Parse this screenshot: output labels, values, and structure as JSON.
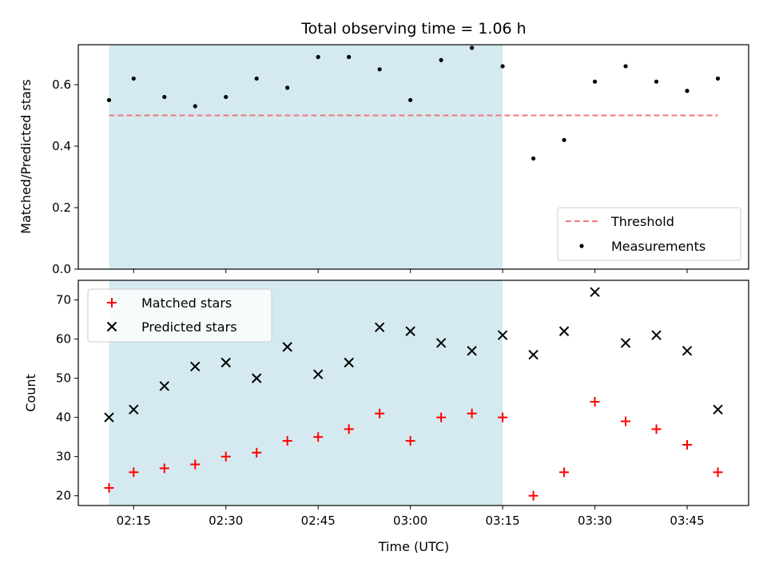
{
  "title": "Total observing time = 1.06 h",
  "xlabel": "Time (UTC)",
  "x_ticks": [
    "02:15",
    "02:30",
    "02:45",
    "03:00",
    "03:15",
    "03:30",
    "03:45"
  ],
  "colors": {
    "shade": "#d4eaf0",
    "threshold": "#f07878",
    "matched": "#ff0000",
    "predicted": "#000000",
    "measurements": "#000000"
  },
  "chart_data": [
    {
      "type": "scatter",
      "ylabel": "Matched/Predicted stars",
      "ylim": [
        0,
        0.73
      ],
      "y_ticks": [
        "0.0",
        "0.2",
        "0.4",
        "0.6"
      ],
      "xlim": [
        "02:06",
        "03:55"
      ],
      "shaded_region": {
        "from": "02:11",
        "to": "03:15"
      },
      "legend_position": "lower-right",
      "series": [
        {
          "name": "Threshold",
          "style": "dashed-line",
          "x": [
            "02:11",
            "03:50"
          ],
          "values": [
            0.5,
            0.5
          ]
        },
        {
          "name": "Measurements",
          "style": "dot",
          "x": [
            "02:11",
            "02:15",
            "02:20",
            "02:25",
            "02:30",
            "02:35",
            "02:40",
            "02:45",
            "02:50",
            "02:55",
            "03:00",
            "03:05",
            "03:10",
            "03:15",
            "03:20",
            "03:25",
            "03:30",
            "03:35",
            "03:40",
            "03:45",
            "03:50"
          ],
          "values": [
            0.55,
            0.62,
            0.56,
            0.53,
            0.56,
            0.62,
            0.59,
            0.69,
            0.69,
            0.65,
            0.55,
            0.68,
            0.72,
            0.66,
            0.36,
            0.42,
            0.61,
            0.66,
            0.61,
            0.58,
            0.62
          ]
        }
      ]
    },
    {
      "type": "scatter",
      "ylabel": "Count",
      "ylim": [
        17.5,
        75
      ],
      "y_ticks": [
        "20",
        "30",
        "40",
        "50",
        "60",
        "70"
      ],
      "xlim": [
        "02:06",
        "03:55"
      ],
      "shaded_region": {
        "from": "02:11",
        "to": "03:15"
      },
      "legend_position": "upper-left",
      "series": [
        {
          "name": "Matched stars",
          "marker": "plus",
          "x": [
            "02:11",
            "02:15",
            "02:20",
            "02:25",
            "02:30",
            "02:35",
            "02:40",
            "02:45",
            "02:50",
            "02:55",
            "03:00",
            "03:05",
            "03:10",
            "03:15",
            "03:20",
            "03:25",
            "03:30",
            "03:35",
            "03:40",
            "03:45",
            "03:50"
          ],
          "values": [
            22,
            26,
            27,
            28,
            30,
            31,
            34,
            35,
            37,
            41,
            34,
            40,
            41,
            40,
            20,
            26,
            44,
            39,
            37,
            33,
            26
          ]
        },
        {
          "name": "Predicted stars",
          "marker": "x",
          "x": [
            "02:11",
            "02:15",
            "02:20",
            "02:25",
            "02:30",
            "02:35",
            "02:40",
            "02:45",
            "02:50",
            "02:55",
            "03:00",
            "03:05",
            "03:10",
            "03:15",
            "03:20",
            "03:25",
            "03:30",
            "03:35",
            "03:40",
            "03:45",
            "03:50"
          ],
          "values": [
            40,
            42,
            48,
            53,
            54,
            50,
            58,
            51,
            54,
            63,
            62,
            59,
            57,
            61,
            56,
            62,
            72,
            59,
            61,
            57,
            42
          ]
        }
      ]
    }
  ]
}
